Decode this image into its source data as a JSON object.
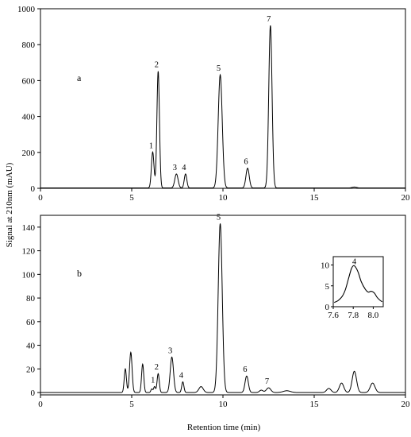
{
  "chart_data": {
    "type": "line",
    "ylabel": "Signal at 210nm (mAU)",
    "xlabel": "Retention time (min)",
    "panels": [
      {
        "panel_label": "a",
        "xlim": [
          0,
          20
        ],
        "ylim": [
          0,
          1000
        ],
        "x_ticks": [
          0,
          5,
          10,
          15,
          20
        ],
        "y_ticks": [
          0,
          200,
          400,
          600,
          800,
          1000
        ],
        "baseline": 2,
        "peaks": [
          {
            "label": "1",
            "x": 6.15,
            "y": 200,
            "width": 0.07
          },
          {
            "label": "2",
            "x": 6.45,
            "y": 650,
            "width": 0.07
          },
          {
            "label": "3",
            "x": 7.45,
            "y": 78,
            "width": 0.09
          },
          {
            "label": "4",
            "x": 7.95,
            "y": 78,
            "width": 0.07
          },
          {
            "label": "5",
            "x": 9.85,
            "y": 630,
            "width": 0.11
          },
          {
            "label": "6",
            "x": 11.35,
            "y": 110,
            "width": 0.09
          },
          {
            "label": "7",
            "x": 12.6,
            "y": 905,
            "width": 0.09
          },
          {
            "label": "",
            "x": 17.2,
            "y": 5,
            "width": 0.12
          }
        ]
      },
      {
        "panel_label": "b",
        "xlim": [
          0,
          20
        ],
        "ylim": [
          -2,
          150
        ],
        "x_ticks": [
          0,
          5,
          10,
          15,
          20
        ],
        "y_ticks": [
          0,
          20,
          40,
          60,
          80,
          100,
          120,
          140
        ],
        "baseline": 0,
        "peaks": [
          {
            "label": "",
            "x": 4.65,
            "y": 20,
            "width": 0.06
          },
          {
            "label": "",
            "x": 4.95,
            "y": 34,
            "width": 0.07
          },
          {
            "label": "",
            "x": 5.6,
            "y": 24,
            "width": 0.06
          },
          {
            "label": "",
            "x": 6.1,
            "y": 3,
            "width": 0.05
          },
          {
            "label": "1",
            "x": 6.25,
            "y": 5,
            "width": 0.05
          },
          {
            "label": "2",
            "x": 6.45,
            "y": 16,
            "width": 0.06
          },
          {
            "label": "3",
            "x": 7.2,
            "y": 30,
            "width": 0.09
          },
          {
            "label": "4",
            "x": 7.8,
            "y": 9,
            "width": 0.06
          },
          {
            "label": "",
            "x": 8.8,
            "y": 5,
            "width": 0.12
          },
          {
            "label": "5",
            "x": 9.85,
            "y": 143,
            "width": 0.11
          },
          {
            "label": "6",
            "x": 11.3,
            "y": 14,
            "width": 0.09
          },
          {
            "label": "",
            "x": 12.1,
            "y": 2,
            "width": 0.1
          },
          {
            "label": "7",
            "x": 12.5,
            "y": 4,
            "width": 0.12
          },
          {
            "label": "",
            "x": 13.5,
            "y": 1.5,
            "width": 0.2
          },
          {
            "label": "",
            "x": 15.8,
            "y": 3.5,
            "width": 0.12
          },
          {
            "label": "",
            "x": 16.5,
            "y": 8,
            "width": 0.12
          },
          {
            "label": "",
            "x": 17.2,
            "y": 18,
            "width": 0.12
          },
          {
            "label": "",
            "x": 18.2,
            "y": 8,
            "width": 0.13
          }
        ],
        "inset": {
          "xlim": [
            7.6,
            8.1
          ],
          "ylim": [
            0,
            12
          ],
          "x_ticks": [
            7.6,
            7.8,
            8.0
          ],
          "y_ticks": [
            0,
            5,
            10
          ],
          "peak_label": "4",
          "peak_label_x": 7.81,
          "peak_label_y": 10,
          "points": [
            [
              7.61,
              1.0
            ],
            [
              7.65,
              1.5
            ],
            [
              7.69,
              2.5
            ],
            [
              7.72,
              4.0
            ],
            [
              7.75,
              6.5
            ],
            [
              7.78,
              9.0
            ],
            [
              7.8,
              9.8
            ],
            [
              7.82,
              9.6
            ],
            [
              7.85,
              8.2
            ],
            [
              7.88,
              6.0
            ],
            [
              7.92,
              4.2
            ],
            [
              7.95,
              3.5
            ],
            [
              7.98,
              3.7
            ],
            [
              8.01,
              3.3
            ],
            [
              8.04,
              2.2
            ],
            [
              8.07,
              1.5
            ],
            [
              8.09,
              1.2
            ]
          ]
        }
      }
    ]
  }
}
